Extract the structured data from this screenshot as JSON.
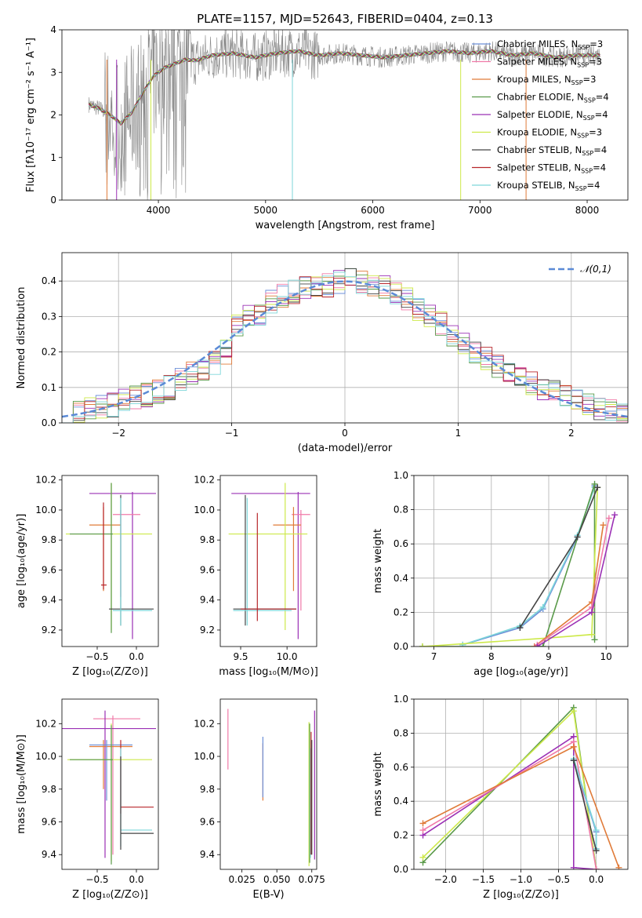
{
  "figure_title": "PLATE=1157, MJD=52643, FIBERID=0404, z=0.13",
  "colors": {
    "chabrier_miles": "#6c8fd8",
    "salpeter_miles": "#f07aa8",
    "kroupa_miles": "#e07b39",
    "chabrier_elodie": "#5a9a4a",
    "salpeter_elodie": "#9b30b5",
    "kroupa_elodie": "#cde94a",
    "chabrier_stelib": "#444444",
    "salpeter_stelib": "#b8262a",
    "kroupa_stelib": "#7dd6d9",
    "data_spectrum": "#888888",
    "normal_curve": "#5b8ad6",
    "grid": "#b0b0b0"
  },
  "legend_models": [
    {
      "key": "chabrier_miles",
      "label": "Chabrier MILES, N",
      "sub": "SSP",
      "tail": "=3"
    },
    {
      "key": "salpeter_miles",
      "label": "Salpeter MILES, N",
      "sub": "SSP",
      "tail": "=3"
    },
    {
      "key": "kroupa_miles",
      "label": "Kroupa MILES, N",
      "sub": "SSP",
      "tail": "=3"
    },
    {
      "key": "chabrier_elodie",
      "label": "Chabrier ELODIE, N",
      "sub": "SSP",
      "tail": "=4"
    },
    {
      "key": "salpeter_elodie",
      "label": "Salpeter ELODIE, N",
      "sub": "SSP",
      "tail": "=4"
    },
    {
      "key": "kroupa_elodie",
      "label": "Kroupa ELODIE, N",
      "sub": "SSP",
      "tail": "=3"
    },
    {
      "key": "chabrier_stelib",
      "label": "Chabrier STELIB, N",
      "sub": "SSP",
      "tail": "=4"
    },
    {
      "key": "salpeter_stelib",
      "label": "Salpeter STELIB, N",
      "sub": "SSP",
      "tail": "=4"
    },
    {
      "key": "kroupa_stelib",
      "label": "Kroupa STELIB, N",
      "sub": "SSP",
      "tail": "=4"
    }
  ],
  "chart_data": [
    {
      "id": "spectrum",
      "type": "line",
      "xlabel": "wavelength [Angstrom, rest frame]",
      "ylabel": "Flux [fλ10⁻¹⁷ erg cm⁻² s⁻¹ A⁻¹]",
      "xlim": [
        3100,
        8380
      ],
      "ylim": [
        0,
        4
      ],
      "xticks": [
        4000,
        5000,
        6000,
        7000,
        8000
      ],
      "yticks": [
        0,
        1,
        2,
        3,
        4
      ],
      "legend_placement": "right",
      "model_continuum": [
        [
          3350,
          2.25
        ],
        [
          3450,
          2.15
        ],
        [
          3550,
          2.0
        ],
        [
          3650,
          1.8
        ],
        [
          3750,
          2.05
        ],
        [
          3850,
          2.5
        ],
        [
          3950,
          2.9
        ],
        [
          4050,
          3.1
        ],
        [
          4150,
          3.2
        ],
        [
          4250,
          3.3
        ],
        [
          4350,
          3.28
        ],
        [
          4500,
          3.4
        ],
        [
          4700,
          3.45
        ],
        [
          4900,
          3.35
        ],
        [
          5100,
          3.45
        ],
        [
          5300,
          3.5
        ],
        [
          5500,
          3.4
        ],
        [
          5700,
          3.45
        ],
        [
          5900,
          3.4
        ],
        [
          6100,
          3.35
        ],
        [
          6300,
          3.4
        ],
        [
          6500,
          3.45
        ],
        [
          6700,
          3.5
        ],
        [
          6900,
          3.45
        ],
        [
          7100,
          3.5
        ],
        [
          7300,
          3.4
        ],
        [
          7500,
          3.45
        ],
        [
          7700,
          3.35
        ],
        [
          7900,
          3.4
        ],
        [
          8100,
          3.4
        ]
      ]
    },
    {
      "id": "residuals",
      "type": "line",
      "xlabel": "(data-model)/error",
      "ylabel": "Normed distribution",
      "xlim": [
        -2.5,
        2.5
      ],
      "ylim": [
        0,
        0.48
      ],
      "xticks": [
        -2,
        -1,
        0,
        1,
        2
      ],
      "yticks": [
        0.0,
        0.1,
        0.2,
        0.3,
        0.4
      ],
      "grid": true,
      "legend": "𝒩(0,1)",
      "legend_placement": "top-right",
      "bin_edges_start": -2.5,
      "bin_width": 0.1,
      "histogram_base": [
        0.025,
        0.03,
        0.04,
        0.045,
        0.05,
        0.06,
        0.07,
        0.08,
        0.09,
        0.1,
        0.12,
        0.14,
        0.15,
        0.17,
        0.2,
        0.27,
        0.3,
        0.31,
        0.34,
        0.36,
        0.37,
        0.38,
        0.38,
        0.39,
        0.4,
        0.41,
        0.4,
        0.39,
        0.38,
        0.37,
        0.35,
        0.32,
        0.3,
        0.28,
        0.25,
        0.22,
        0.2,
        0.18,
        0.16,
        0.15,
        0.13,
        0.11,
        0.1,
        0.09,
        0.08,
        0.06,
        0.05,
        0.04,
        0.03,
        0.025
      ]
    },
    {
      "id": "age_vs_Z",
      "type": "scatter",
      "xlabel": "Z [log₁₀(Z/Z⊙)]",
      "ylabel": "age  [log₁₀(age/yr)]",
      "xlim": [
        -0.95,
        0.28
      ],
      "ylim": [
        9.09,
        10.23
      ],
      "xticks": [
        -0.5,
        0.0
      ],
      "yticks": [
        9.2,
        9.4,
        9.6,
        9.8,
        10.0,
        10.2
      ],
      "points": [
        {
          "model": "salpeter_elodie",
          "x": -0.05,
          "y": 10.11,
          "x_lo": -0.6,
          "x_hi": 0.25,
          "y_lo": 9.14,
          "y_hi": 10.12
        },
        {
          "model": "salpeter_miles",
          "x": -0.2,
          "y": 9.97,
          "x_lo": -0.3,
          "x_hi": 0.05,
          "y_lo": 9.42,
          "y_hi": 10.0
        },
        {
          "model": "kroupa_miles",
          "x": -0.42,
          "y": 9.9,
          "x_lo": -0.6,
          "x_hi": -0.2,
          "y_lo": 9.46,
          "y_hi": 10.02
        },
        {
          "model": "kroupa_elodie",
          "x": -0.32,
          "y": 9.84,
          "x_lo": -0.9,
          "x_hi": 0.2,
          "y_lo": 9.2,
          "y_hi": 10.18
        },
        {
          "model": "chabrier_elodie",
          "x": -0.32,
          "y": 9.84,
          "x_lo": -0.85,
          "x_hi": -0.3,
          "y_lo": 9.18,
          "y_hi": 10.18
        },
        {
          "model": "chabrier_stelib",
          "x": -0.2,
          "y": 9.34,
          "x_lo": -0.35,
          "x_hi": 0.22,
          "y_lo": 9.23,
          "y_hi": 10.1
        },
        {
          "model": "kroupa_stelib",
          "x": -0.2,
          "y": 9.33,
          "x_lo": -0.3,
          "x_hi": 0.2,
          "y_lo": 9.23,
          "y_hi": 10.08
        },
        {
          "model": "salpeter_stelib",
          "x": -0.42,
          "y": 9.5,
          "x_lo": -0.45,
          "x_hi": -0.38,
          "y_lo": 9.47,
          "y_hi": 10.05
        }
      ]
    },
    {
      "id": "age_vs_mass",
      "type": "scatter",
      "xlabel": "mass [log₁₀(M/M⊙)]",
      "ylabel": "",
      "xlim": [
        9.28,
        10.32
      ],
      "ylim": [
        9.09,
        10.23
      ],
      "xticks": [
        9.5,
        10.0
      ],
      "yticks": [
        9.2,
        9.4,
        9.6,
        9.8,
        10.0,
        10.2
      ],
      "points": [
        {
          "model": "salpeter_elodie",
          "x": 10.12,
          "y": 10.11,
          "x_lo": 9.4,
          "x_hi": 10.25,
          "y_lo": 9.14,
          "y_hi": 10.12
        },
        {
          "model": "salpeter_miles",
          "x": 10.15,
          "y": 9.97,
          "x_lo": 10.05,
          "x_hi": 10.25,
          "y_lo": 9.33,
          "y_hi": 10.0
        },
        {
          "model": "kroupa_miles",
          "x": 10.07,
          "y": 9.9,
          "x_lo": 9.85,
          "x_hi": 10.15,
          "y_lo": 9.46,
          "y_hi": 10.02
        },
        {
          "model": "kroupa_elodie",
          "x": 9.98,
          "y": 9.84,
          "x_lo": 9.37,
          "x_hi": 10.22,
          "y_lo": 9.2,
          "y_hi": 10.18
        },
        {
          "model": "chabrier_stelib",
          "x": 9.55,
          "y": 9.34,
          "x_lo": 9.42,
          "x_hi": 10.1,
          "y_lo": 9.23,
          "y_hi": 10.1
        },
        {
          "model": "kroupa_stelib",
          "x": 9.57,
          "y": 9.33,
          "x_lo": 9.42,
          "x_hi": 10.05,
          "y_lo": 9.23,
          "y_hi": 10.08
        },
        {
          "model": "salpeter_stelib",
          "x": 9.68,
          "y": 9.34,
          "x_lo": 9.5,
          "x_hi": 10.1,
          "y_lo": 9.26,
          "y_hi": 9.98
        }
      ]
    },
    {
      "id": "massweight_vs_age",
      "type": "line",
      "xlabel": "age  [log₁₀(age/yr)]",
      "ylabel": "mass weight",
      "xlim": [
        6.65,
        10.38
      ],
      "ylim": [
        0,
        1
      ],
      "xticks": [
        7,
        8,
        9,
        10
      ],
      "yticks": [
        0.0,
        0.2,
        0.4,
        0.6,
        0.8,
        1.0
      ],
      "grid": true,
      "series": [
        {
          "model": "chabrier_miles",
          "x": [
            7.5,
            8.5,
            8.9,
            9.5,
            9.8
          ],
          "y": [
            0.01,
            0.11,
            0.22,
            0.64,
            0.94
          ]
        },
        {
          "model": "kroupa_stelib",
          "x": [
            7.5,
            8.5,
            8.9,
            9.5,
            9.8
          ],
          "y": [
            0.01,
            0.12,
            0.23,
            0.65,
            0.93
          ]
        },
        {
          "model": "chabrier_elodie",
          "x": [
            6.8,
            8.9,
            9.8,
            9.8
          ],
          "y": [
            0.0,
            0.0,
            0.95,
            0.04
          ]
        },
        {
          "model": "kroupa_elodie",
          "x": [
            6.8,
            9.0,
            9.75,
            9.85
          ],
          "y": [
            0.0,
            0.05,
            0.07,
            0.93
          ]
        },
        {
          "model": "kroupa_miles",
          "x": [
            8.75,
            9.75,
            9.95
          ],
          "y": [
            0.0,
            0.26,
            0.71
          ]
        },
        {
          "model": "salpeter_miles",
          "x": [
            8.8,
            9.75,
            10.05
          ],
          "y": [
            0.01,
            0.23,
            0.75
          ]
        },
        {
          "model": "salpeter_elodie",
          "x": [
            8.8,
            9.75,
            10.15
          ],
          "y": [
            0.0,
            0.2,
            0.77
          ]
        },
        {
          "model": "chabrier_stelib",
          "x": [
            8.5,
            9.5,
            9.85
          ],
          "y": [
            0.11,
            0.64,
            0.93
          ]
        }
      ]
    },
    {
      "id": "mass_vs_Z",
      "type": "scatter",
      "xlabel": "Z [log₁₀(Z/Z⊙)]",
      "ylabel": "mass [log₁₀(M/M⊙)]",
      "xlim": [
        -0.95,
        0.28
      ],
      "ylim": [
        9.31,
        10.35
      ],
      "xticks": [
        -0.5,
        0.0
      ],
      "yticks": [
        9.4,
        9.6,
        9.8,
        10.0,
        10.2
      ],
      "points": [
        {
          "model": "salpeter_miles",
          "x": -0.3,
          "y": 10.23,
          "x_lo": -0.55,
          "x_hi": 0.05,
          "y_lo": 9.4,
          "y_hi": 10.25
        },
        {
          "model": "salpeter_elodie",
          "x": -0.4,
          "y": 10.17,
          "x_lo": -0.95,
          "x_hi": 0.25,
          "y_lo": 9.38,
          "y_hi": 10.28
        },
        {
          "model": "kroupa_miles",
          "x": -0.42,
          "y": 10.06,
          "x_lo": -0.6,
          "x_hi": -0.05,
          "y_lo": 9.8,
          "y_hi": 10.1
        },
        {
          "model": "chabrier_miles",
          "x": -0.38,
          "y": 10.07,
          "x_lo": -0.6,
          "x_hi": -0.05,
          "y_lo": 9.73,
          "y_hi": 10.1
        },
        {
          "model": "kroupa_elodie",
          "x": -0.32,
          "y": 9.98,
          "x_lo": -0.88,
          "x_hi": 0.2,
          "y_lo": 9.36,
          "y_hi": 10.2
        },
        {
          "model": "chabrier_elodie",
          "x": -0.32,
          "y": 9.98,
          "x_lo": -0.85,
          "x_hi": -0.3,
          "y_lo": 9.34,
          "y_hi": 10.19
        },
        {
          "model": "salpeter_stelib",
          "x": -0.2,
          "y": 9.69,
          "x_lo": -0.2,
          "x_hi": 0.22,
          "y_lo": 9.65,
          "y_hi": 10.1
        },
        {
          "model": "kroupa_stelib",
          "x": -0.2,
          "y": 9.55,
          "x_lo": -0.2,
          "x_hi": 0.2,
          "y_lo": 9.45,
          "y_hi": 10.05
        },
        {
          "model": "chabrier_stelib",
          "x": -0.2,
          "y": 9.53,
          "x_lo": -0.2,
          "x_hi": 0.22,
          "y_lo": 9.43,
          "y_hi": 10.0
        }
      ]
    },
    {
      "id": "mass_vs_ebv",
      "type": "scatter",
      "xlabel": "E(B-V)",
      "ylabel": "",
      "xlim": [
        0.0095,
        0.0785
      ],
      "ylim": [
        9.31,
        10.35
      ],
      "xticks": [
        0.025,
        0.05,
        0.075
      ],
      "yticks": [
        9.4,
        9.6,
        9.8,
        10.0,
        10.2
      ],
      "points": [
        {
          "model": "salpeter_miles",
          "x": 0.015,
          "y": 10.1,
          "y_lo": 9.92,
          "y_hi": 10.29
        },
        {
          "model": "kroupa_miles",
          "x": 0.04,
          "y": 9.9,
          "y_lo": 9.73,
          "y_hi": 10.08
        },
        {
          "model": "chabrier_miles",
          "x": 0.04,
          "y": 9.95,
          "y_lo": 9.75,
          "y_hi": 10.12
        },
        {
          "model": "kroupa_elodie",
          "x": 0.073,
          "y": 9.8,
          "y_lo": 9.33,
          "y_hi": 10.21
        },
        {
          "model": "chabrier_elodie",
          "x": 0.0735,
          "y": 9.8,
          "y_lo": 9.35,
          "y_hi": 10.2
        },
        {
          "model": "kroupa_stelib",
          "x": 0.074,
          "y": 9.7,
          "y_lo": 9.38,
          "y_hi": 10.05
        },
        {
          "model": "salpeter_stelib",
          "x": 0.0745,
          "y": 9.9,
          "y_lo": 9.4,
          "y_hi": 10.15
        },
        {
          "model": "chabrier_stelib",
          "x": 0.075,
          "y": 9.5,
          "y_lo": 9.4,
          "y_hi": 10.1
        },
        {
          "model": "salpeter_elodie",
          "x": 0.077,
          "y": 9.8,
          "y_lo": 9.37,
          "y_hi": 10.28
        }
      ]
    },
    {
      "id": "massweight_vs_Z",
      "type": "line",
      "xlabel": "Z [log₁₀(Z/Z⊙)]",
      "ylabel": "mass weight",
      "xlim": [
        -2.42,
        0.42
      ],
      "ylim": [
        0,
        1
      ],
      "xticks": [
        -2.0,
        -1.5,
        -1.0,
        -0.5,
        0.0
      ],
      "yticks": [
        0.0,
        0.2,
        0.4,
        0.6,
        0.8,
        1.0
      ],
      "grid": true,
      "series": [
        {
          "model": "chabrier_elodie",
          "x": [
            -2.3,
            -0.3,
            0.0
          ],
          "y": [
            0.04,
            0.95,
            0.0
          ]
        },
        {
          "model": "kroupa_elodie",
          "x": [
            -2.3,
            -0.3,
            0.0
          ],
          "y": [
            0.07,
            0.93,
            0.0
          ]
        },
        {
          "model": "salpeter_elodie",
          "x": [
            -2.3,
            -0.3,
            -0.3,
            0.0
          ],
          "y": [
            0.2,
            0.78,
            0.01,
            0.0
          ]
        },
        {
          "model": "salpeter_miles",
          "x": [
            -2.3,
            -0.3,
            0.0
          ],
          "y": [
            0.23,
            0.75,
            0.0
          ]
        },
        {
          "model": "kroupa_miles",
          "x": [
            -2.3,
            -0.3,
            0.3
          ],
          "y": [
            0.27,
            0.72,
            0.01
          ]
        },
        {
          "model": "chabrier_miles",
          "x": [
            -0.3,
            0.0,
            0.0
          ],
          "y": [
            0.64,
            0.22,
            0.12
          ]
        },
        {
          "model": "kroupa_stelib",
          "x": [
            -0.3,
            0.0,
            0.0
          ],
          "y": [
            0.65,
            0.23,
            0.12
          ]
        },
        {
          "model": "chabrier_stelib",
          "x": [
            -0.3,
            0.0
          ],
          "y": [
            0.64,
            0.11
          ]
        }
      ]
    }
  ]
}
